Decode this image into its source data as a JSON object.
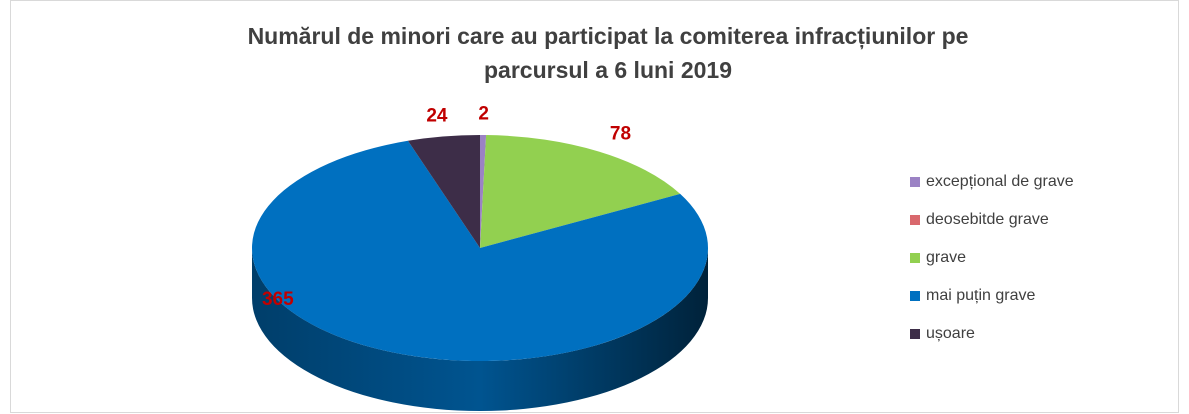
{
  "chart_data": {
    "type": "pie",
    "title": [
      "Numărul de minori care au participat la comiterea infracțiunilor pe",
      "parcursul a 6 luni 2019"
    ],
    "categories": [
      "excepțional de grave",
      "deosebitde grave",
      "grave",
      "mai puțin grave",
      "ușoare"
    ],
    "values": [
      2,
      0,
      78,
      365,
      24
    ],
    "colors": [
      "#9b82c4",
      "#d9686d",
      "#92d050",
      "#0070c0",
      "#3d2d48"
    ],
    "legend": "right"
  }
}
